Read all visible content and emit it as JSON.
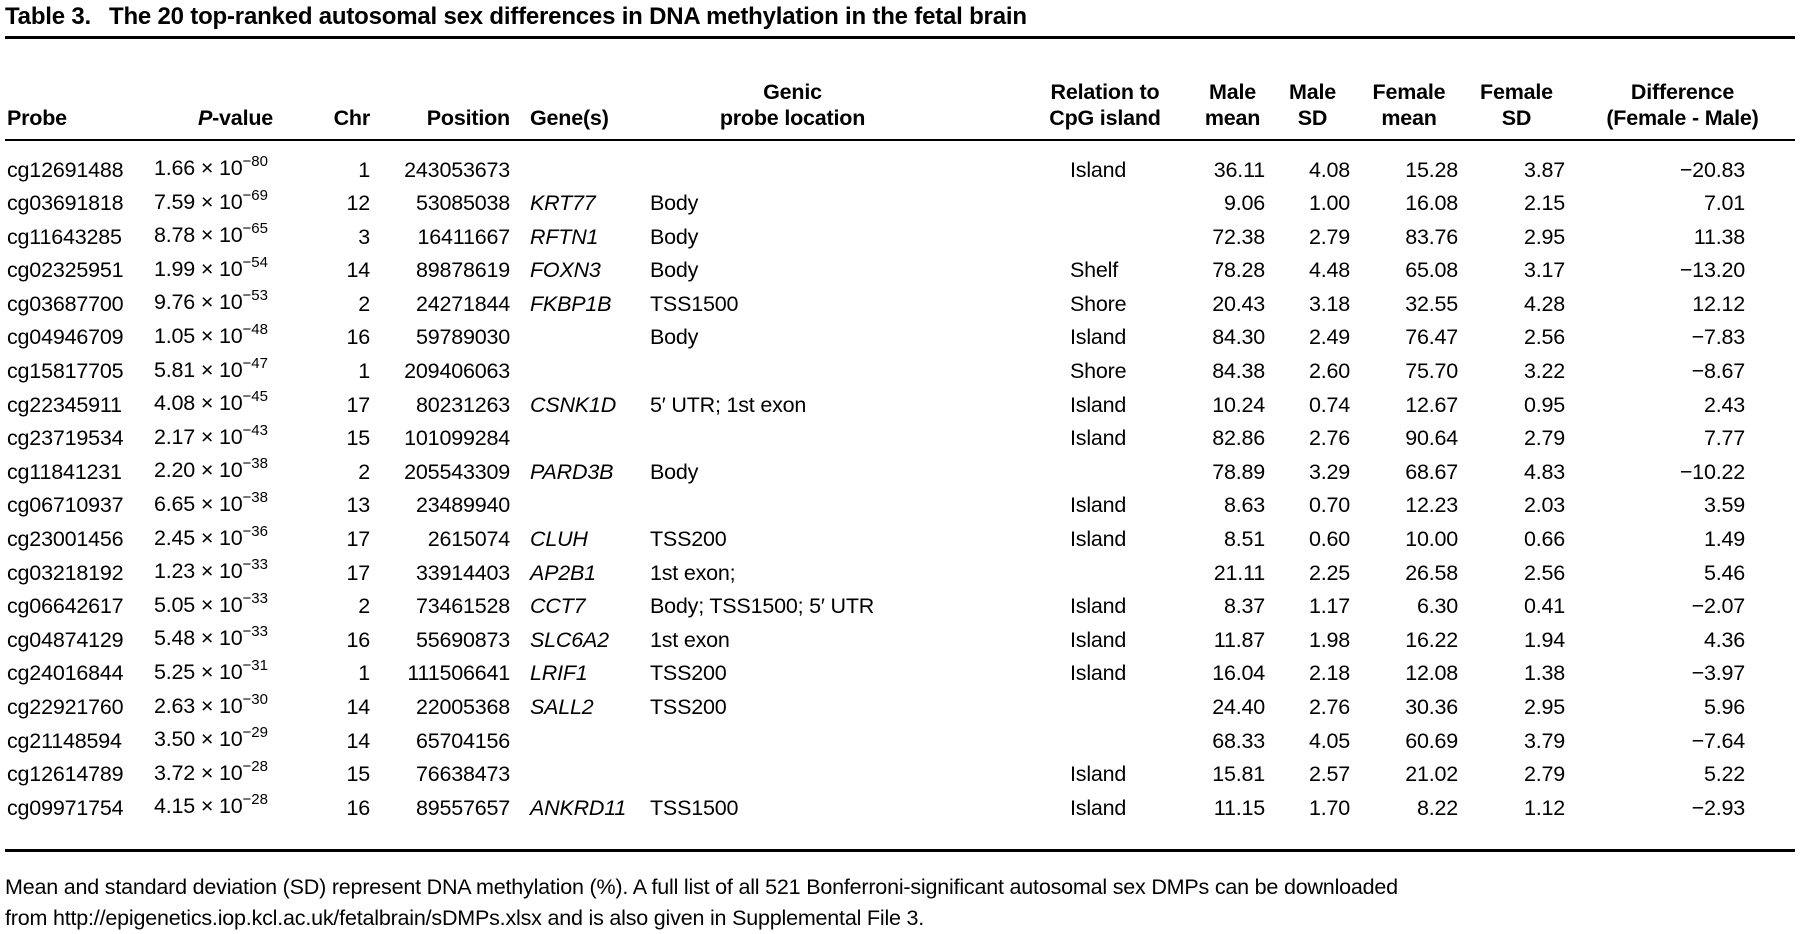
{
  "title": {
    "label": "Table 3.",
    "text": "The 20 top-ranked autosomal sex differences in DNA methylation in the fetal brain"
  },
  "table": {
    "headers": {
      "probe": "Probe",
      "pvalue_italic": "P",
      "pvalue_rest": "-value",
      "chr": "Chr",
      "position": "Position",
      "genes": "Gene(s)",
      "genic": [
        "Genic",
        "probe location"
      ],
      "relation": [
        "Relation to",
        "CpG island"
      ],
      "male_mean": [
        "Male",
        "mean"
      ],
      "male_sd": [
        "Male",
        "SD"
      ],
      "female_mean": [
        "Female",
        "mean"
      ],
      "female_sd": [
        "Female",
        "SD"
      ],
      "difference": [
        "Difference",
        "(Female - Male)"
      ]
    },
    "rows": [
      {
        "probe": "cg12691488",
        "p": "1.66 × 10",
        "p_exp": "−80",
        "chr": "1",
        "position": "243053673",
        "gene": "",
        "genic_location": "",
        "cpg_relation": "Island",
        "male_mean": "36.11",
        "male_sd": "4.08",
        "female_mean": "15.28",
        "female_sd": "3.87",
        "difference": "−20.83"
      },
      {
        "probe": "cg03691818",
        "p": "7.59 × 10",
        "p_exp": "−69",
        "chr": "12",
        "position": "53085038",
        "gene": "KRT77",
        "genic_location": "Body",
        "cpg_relation": "",
        "male_mean": "9.06",
        "male_sd": "1.00",
        "female_mean": "16.08",
        "female_sd": "2.15",
        "difference": "7.01"
      },
      {
        "probe": "cg11643285",
        "p": "8.78 × 10",
        "p_exp": "−65",
        "chr": "3",
        "position": "16411667",
        "gene": "RFTN1",
        "genic_location": "Body",
        "cpg_relation": "",
        "male_mean": "72.38",
        "male_sd": "2.79",
        "female_mean": "83.76",
        "female_sd": "2.95",
        "difference": "11.38"
      },
      {
        "probe": "cg02325951",
        "p": "1.99 × 10",
        "p_exp": "−54",
        "chr": "14",
        "position": "89878619",
        "gene": "FOXN3",
        "genic_location": "Body",
        "cpg_relation": "Shelf",
        "male_mean": "78.28",
        "male_sd": "4.48",
        "female_mean": "65.08",
        "female_sd": "3.17",
        "difference": "−13.20"
      },
      {
        "probe": "cg03687700",
        "p": "9.76 × 10",
        "p_exp": "−53",
        "chr": "2",
        "position": "24271844",
        "gene": "FKBP1B",
        "genic_location": "TSS1500",
        "cpg_relation": "Shore",
        "male_mean": "20.43",
        "male_sd": "3.18",
        "female_mean": "32.55",
        "female_sd": "4.28",
        "difference": "12.12"
      },
      {
        "probe": "cg04946709",
        "p": "1.05 × 10",
        "p_exp": "−48",
        "chr": "16",
        "position": "59789030",
        "gene": "",
        "genic_location": "Body",
        "cpg_relation": "Island",
        "male_mean": "84.30",
        "male_sd": "2.49",
        "female_mean": "76.47",
        "female_sd": "2.56",
        "difference": "−7.83"
      },
      {
        "probe": "cg15817705",
        "p": "5.81 × 10",
        "p_exp": "−47",
        "chr": "1",
        "position": "209406063",
        "gene": "",
        "genic_location": "",
        "cpg_relation": "Shore",
        "male_mean": "84.38",
        "male_sd": "2.60",
        "female_mean": "75.70",
        "female_sd": "3.22",
        "difference": "−8.67"
      },
      {
        "probe": "cg22345911",
        "p": "4.08 × 10",
        "p_exp": "−45",
        "chr": "17",
        "position": "80231263",
        "gene": "CSNK1D",
        "genic_location": "5′ UTR; 1st exon",
        "cpg_relation": "Island",
        "male_mean": "10.24",
        "male_sd": "0.74",
        "female_mean": "12.67",
        "female_sd": "0.95",
        "difference": "2.43"
      },
      {
        "probe": "cg23719534",
        "p": "2.17 × 10",
        "p_exp": "−43",
        "chr": "15",
        "position": "101099284",
        "gene": "",
        "genic_location": "",
        "cpg_relation": "Island",
        "male_mean": "82.86",
        "male_sd": "2.76",
        "female_mean": "90.64",
        "female_sd": "2.79",
        "difference": "7.77"
      },
      {
        "probe": "cg11841231",
        "p": "2.20 × 10",
        "p_exp": "−38",
        "chr": "2",
        "position": "205543309",
        "gene": "PARD3B",
        "genic_location": "Body",
        "cpg_relation": "",
        "male_mean": "78.89",
        "male_sd": "3.29",
        "female_mean": "68.67",
        "female_sd": "4.83",
        "difference": "−10.22"
      },
      {
        "probe": "cg06710937",
        "p": "6.65 × 10",
        "p_exp": "−38",
        "chr": "13",
        "position": "23489940",
        "gene": "",
        "genic_location": "",
        "cpg_relation": "Island",
        "male_mean": "8.63",
        "male_sd": "0.70",
        "female_mean": "12.23",
        "female_sd": "2.03",
        "difference": "3.59"
      },
      {
        "probe": "cg23001456",
        "p": "2.45 × 10",
        "p_exp": "−36",
        "chr": "17",
        "position": "2615074",
        "gene": "CLUH",
        "genic_location": "TSS200",
        "cpg_relation": "Island",
        "male_mean": "8.51",
        "male_sd": "0.60",
        "female_mean": "10.00",
        "female_sd": "0.66",
        "difference": "1.49"
      },
      {
        "probe": "cg03218192",
        "p": "1.23 × 10",
        "p_exp": "−33",
        "chr": "17",
        "position": "33914403",
        "gene": "AP2B1",
        "genic_location": "1st exon;",
        "cpg_relation": "",
        "male_mean": "21.11",
        "male_sd": "2.25",
        "female_mean": "26.58",
        "female_sd": "2.56",
        "difference": "5.46"
      },
      {
        "probe": "cg06642617",
        "p": "5.05 × 10",
        "p_exp": "−33",
        "chr": "2",
        "position": "73461528",
        "gene": "CCT7",
        "genic_location": "Body; TSS1500; 5′ UTR",
        "cpg_relation": "Island",
        "male_mean": "8.37",
        "male_sd": "1.17",
        "female_mean": "6.30",
        "female_sd": "0.41",
        "difference": "−2.07"
      },
      {
        "probe": "cg04874129",
        "p": "5.48 × 10",
        "p_exp": "−33",
        "chr": "16",
        "position": "55690873",
        "gene": "SLC6A2",
        "genic_location": "1st exon",
        "cpg_relation": "Island",
        "male_mean": "11.87",
        "male_sd": "1.98",
        "female_mean": "16.22",
        "female_sd": "1.94",
        "difference": "4.36"
      },
      {
        "probe": "cg24016844",
        "p": "5.25 × 10",
        "p_exp": "−31",
        "chr": "1",
        "position": "111506641",
        "gene": "LRIF1",
        "genic_location": "TSS200",
        "cpg_relation": "Island",
        "male_mean": "16.04",
        "male_sd": "2.18",
        "female_mean": "12.08",
        "female_sd": "1.38",
        "difference": "−3.97"
      },
      {
        "probe": "cg22921760",
        "p": "2.63 × 10",
        "p_exp": "−30",
        "chr": "14",
        "position": "22005368",
        "gene": "SALL2",
        "genic_location": "TSS200",
        "cpg_relation": "",
        "male_mean": "24.40",
        "male_sd": "2.76",
        "female_mean": "30.36",
        "female_sd": "2.95",
        "difference": "5.96"
      },
      {
        "probe": "cg21148594",
        "p": "3.50 × 10",
        "p_exp": "−29",
        "chr": "14",
        "position": "65704156",
        "gene": "",
        "genic_location": "",
        "cpg_relation": "",
        "male_mean": "68.33",
        "male_sd": "4.05",
        "female_mean": "60.69",
        "female_sd": "3.79",
        "difference": "−7.64"
      },
      {
        "probe": "cg12614789",
        "p": "3.72 × 10",
        "p_exp": "−28",
        "chr": "15",
        "position": "76638473",
        "gene": "",
        "genic_location": "",
        "cpg_relation": "Island",
        "male_mean": "15.81",
        "male_sd": "2.57",
        "female_mean": "21.02",
        "female_sd": "2.79",
        "difference": "5.22"
      },
      {
        "probe": "cg09971754",
        "p": "4.15 × 10",
        "p_exp": "−28",
        "chr": "16",
        "position": "89557657",
        "gene": "ANKRD11",
        "genic_location": "TSS1500",
        "cpg_relation": "Island",
        "male_mean": "11.15",
        "male_sd": "1.70",
        "female_mean": "8.22",
        "female_sd": "1.12",
        "difference": "−2.93"
      }
    ]
  },
  "footnote": {
    "line1": "Mean and standard deviation (SD) represent DNA methylation (%). A full list of all 521 Bonferroni-significant autosomal sex DMPs can be downloaded",
    "line2": "from http://epigenetics.iop.kcl.ac.uk/fetalbrain/sDMPs.xlsx and is also given in Supplemental File 3."
  }
}
